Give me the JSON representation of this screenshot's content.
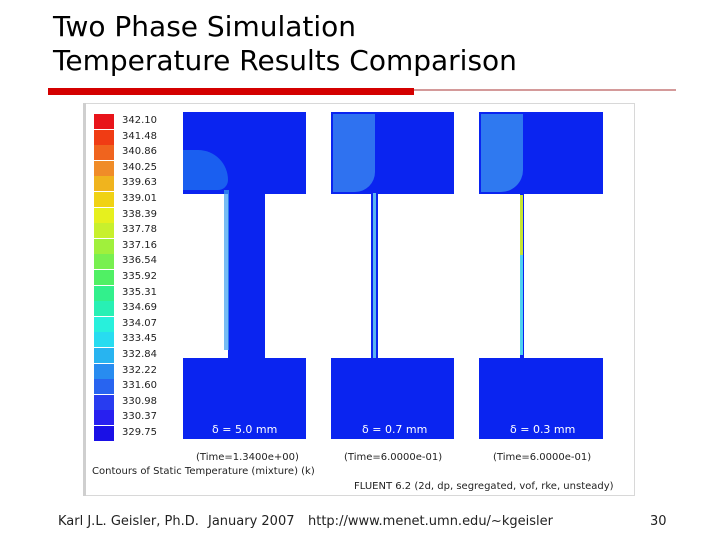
{
  "slide": {
    "title_line1": "Two Phase Simulation",
    "title_line2": "Temperature Results Comparison",
    "accent_color": "#d40000"
  },
  "figure": {
    "colorbar_values": [
      "342.10",
      "341.48",
      "340.86",
      "340.25",
      "339.63",
      "339.01",
      "338.39",
      "337.78",
      "337.16",
      "336.54",
      "335.92",
      "335.31",
      "334.69",
      "334.07",
      "333.45",
      "332.84",
      "332.22",
      "331.60",
      "330.98",
      "330.37",
      "329.75"
    ],
    "colorbar_colors": [
      "#e8141a",
      "#f03c14",
      "#f0641e",
      "#f08c28",
      "#f0b41e",
      "#f0d214",
      "#e6f01e",
      "#c8f02d",
      "#a0f03c",
      "#78f050",
      "#50f064",
      "#32f08c",
      "#28f0b4",
      "#28f0dc",
      "#28dcf0",
      "#28b4f0",
      "#288cf0",
      "#2864f0",
      "#283cf0",
      "#2820f0",
      "#1a10e6"
    ],
    "panels": [
      {
        "delta_label": "δ = 5.0 mm",
        "time_label": "(Time=1.3400e+00)"
      },
      {
        "delta_label": "δ = 0.7 mm",
        "time_label": "(Time=6.0000e-01)"
      },
      {
        "delta_label": "δ = 0.3 mm",
        "time_label": "(Time=6.0000e-01)"
      }
    ],
    "caption_left": "Contours of Static Temperature (mixture)   (k)",
    "caption_right": "FLUENT 6.2 (2d, dp, segregated, vof, rke, unsteady)"
  },
  "footer": {
    "author": "Karl J.L. Geisler, Ph.D.",
    "date": "January 2007",
    "url": "http://www.menet.umn.edu/~kgeisler",
    "page": "30"
  }
}
